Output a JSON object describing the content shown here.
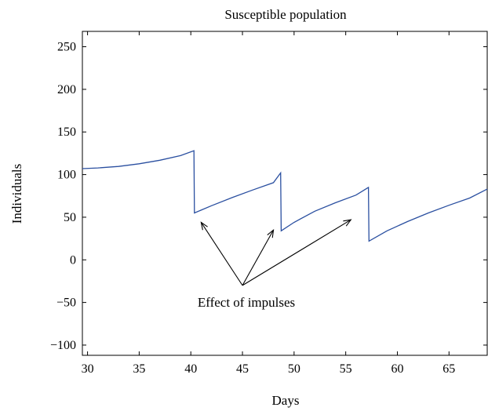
{
  "chart_data": {
    "type": "line",
    "title": "Susceptible population",
    "xlabel": "Days",
    "ylabel": "Individuals",
    "xlim": [
      29.5,
      68.7
    ],
    "ylim": [
      -112,
      268
    ],
    "xticks": [
      30,
      35,
      40,
      45,
      50,
      55,
      60,
      65
    ],
    "yticks": [
      250,
      200,
      150,
      100,
      50,
      0,
      -50,
      -100
    ],
    "xtick_labels": [
      "30",
      "35",
      "40",
      "45",
      "50",
      "55",
      "60",
      "65"
    ],
    "ytick_labels": [
      "250",
      "200",
      "150",
      "100",
      "50",
      "0",
      "−50",
      "−100"
    ],
    "grid": false,
    "line_color": "#2a4fa0",
    "series": [
      {
        "points": [
          [
            29.5,
            107
          ],
          [
            31,
            107.8
          ],
          [
            33,
            109.6
          ],
          [
            35,
            112.7
          ],
          [
            37,
            116.8
          ],
          [
            39,
            122.3
          ],
          [
            40.3,
            128
          ],
          [
            40.35,
            55
          ],
          [
            42,
            63.5
          ],
          [
            44,
            73
          ],
          [
            46,
            82
          ],
          [
            48,
            90.5
          ],
          [
            48.7,
            102
          ],
          [
            48.75,
            34
          ],
          [
            50,
            44
          ],
          [
            52,
            57
          ],
          [
            54,
            67
          ],
          [
            56,
            76
          ],
          [
            57.2,
            85
          ],
          [
            57.25,
            22
          ],
          [
            59,
            34
          ],
          [
            61,
            45
          ],
          [
            63,
            55
          ],
          [
            65,
            64
          ],
          [
            67,
            72.5
          ],
          [
            68.7,
            83
          ]
        ]
      }
    ],
    "annotation": {
      "text": "Effect of impulses",
      "origin": [
        45,
        -30
      ],
      "targets": [
        [
          41,
          44
        ],
        [
          48,
          35
        ],
        [
          55.5,
          47
        ]
      ]
    }
  }
}
